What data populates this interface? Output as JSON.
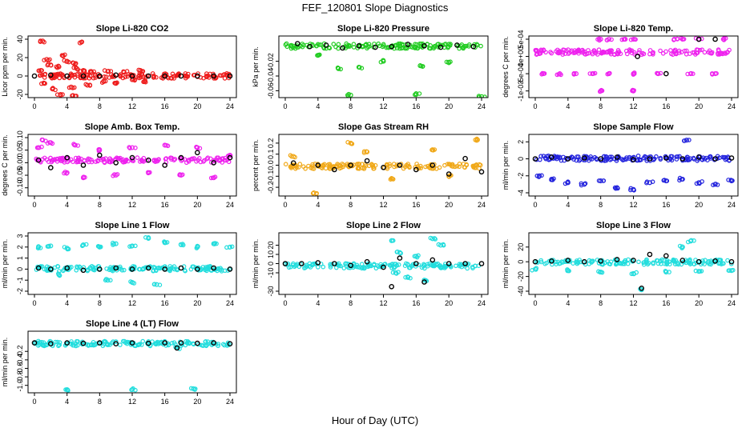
{
  "figure": {
    "title": "FEF_120801  Slope Diagnostics",
    "xlabel": "Hour of Day (UTC)"
  },
  "colors": {
    "red": "#ee1c1c",
    "green": "#22cc22",
    "magenta": "#ee22ee",
    "orange": "#f0a818",
    "blue": "#2222dd",
    "cyan": "#22dddd",
    "black": "#000000"
  },
  "chart_data": [
    {
      "type": "scatter",
      "title": "Slope Li-820 CO2",
      "ylabel": "Licor ppm per min.",
      "color": "red",
      "xlim": [
        0,
        24
      ],
      "ylim": [
        -20,
        40
      ],
      "yticks": [
        "-20",
        "0",
        "20",
        "40"
      ],
      "xticks": [
        "0",
        "4",
        "8",
        "12",
        "16",
        "20",
        "24"
      ],
      "notes": "dense band near 0; outliers up to ~40 and down to ~-20 between hours 0-14",
      "points": [
        [
          1,
          38
        ],
        [
          5.6,
          36
        ],
        [
          1.5,
          18
        ],
        [
          2,
          12
        ],
        [
          3,
          10
        ],
        [
          4,
          16
        ],
        [
          4.8,
          14
        ],
        [
          5.2,
          8
        ],
        [
          6,
          6
        ],
        [
          1.2,
          -8
        ],
        [
          2.2,
          -14
        ],
        [
          3.2,
          -20
        ],
        [
          4.5,
          -12
        ],
        [
          5,
          -22
        ],
        [
          6.5,
          -10
        ],
        [
          8.5,
          -6
        ],
        [
          10,
          -8
        ],
        [
          12,
          -4
        ],
        [
          13,
          6
        ],
        [
          13.5,
          -6
        ],
        [
          3.5,
          22
        ],
        [
          0.8,
          6
        ],
        [
          7,
          4
        ],
        [
          9,
          5
        ],
        [
          11,
          4
        ]
      ],
      "series_black": [
        [
          0,
          0
        ],
        [
          2,
          1
        ],
        [
          4,
          0
        ],
        [
          6,
          0
        ],
        [
          8,
          0
        ],
        [
          10,
          1
        ],
        [
          12,
          0
        ],
        [
          14,
          0
        ],
        [
          16,
          0
        ],
        [
          18,
          0
        ],
        [
          20,
          0
        ],
        [
          22,
          0
        ],
        [
          24,
          0
        ]
      ]
    },
    {
      "type": "scatter",
      "title": "Slope Li-820 Pressure",
      "ylabel": "kPa per min.",
      "color": "green",
      "xlim": [
        0,
        24
      ],
      "ylim": [
        -0.065,
        0.01
      ],
      "yticks": [
        "-0.06",
        "-0.04",
        "-0.02"
      ],
      "xticks": [
        "0",
        "4",
        "8",
        "12",
        "16",
        "20",
        "24"
      ],
      "notes": "upper band ~0 to -0.01, lower band ~-0.015 to -0.025; outliers near -0.065",
      "points": [
        [
          8,
          -0.066
        ],
        [
          16,
          -0.064
        ],
        [
          24,
          -0.068
        ],
        [
          6.5,
          -0.03
        ],
        [
          9,
          -0.028
        ],
        [
          16.5,
          -0.026
        ],
        [
          4,
          -0.012
        ],
        [
          12,
          -0.02
        ],
        [
          20,
          -0.022
        ]
      ],
      "series_black": [
        [
          1.5,
          0.004
        ],
        [
          3,
          0.0
        ],
        [
          5,
          0.002
        ],
        [
          7,
          -0.002
        ],
        [
          9,
          0.001
        ],
        [
          11,
          -0.001
        ],
        [
          13,
          0.0
        ],
        [
          15,
          0.003
        ],
        [
          17,
          0.001
        ],
        [
          19,
          -0.001
        ],
        [
          21,
          0.002
        ],
        [
          23,
          0.0
        ]
      ]
    },
    {
      "type": "scatter",
      "title": "Slope Li-820 Temp.",
      "ylabel": "degrees C per min.",
      "color": "magenta",
      "xlim": [
        0,
        24
      ],
      "ylim": [
        -0.0011,
        0.0005
      ],
      "yticks": [
        "-1e-03",
        "-5e-04",
        "0e+00",
        "5e-04"
      ],
      "xticks": [
        "0",
        "4",
        "8",
        "12",
        "16",
        "20",
        "24"
      ],
      "notes": "most points at 0; discrete levels at 5e-04 and -5e-04, a few at -1e-03",
      "points": [
        [
          8,
          0.0005
        ],
        [
          9,
          0.0005
        ],
        [
          11,
          0.0005
        ],
        [
          12,
          0.0005
        ],
        [
          17,
          0.0005
        ],
        [
          18,
          0.0005
        ],
        [
          20,
          0.0005
        ],
        [
          23,
          0.0005
        ],
        [
          1,
          -0.0005
        ],
        [
          3,
          -0.0005
        ],
        [
          5,
          -0.0005
        ],
        [
          7,
          -0.0005
        ],
        [
          9,
          -0.0005
        ],
        [
          12,
          -0.0005
        ],
        [
          15,
          -0.0005
        ],
        [
          19,
          -0.0005
        ],
        [
          22,
          -0.0005
        ],
        [
          8,
          -0.001
        ],
        [
          12,
          -0.001
        ]
      ],
      "series_black": [
        [
          12.5,
          0.0
        ],
        [
          20,
          0.0005
        ],
        [
          22,
          0.0005
        ],
        [
          16,
          -0.0005
        ]
      ]
    },
    {
      "type": "scatter",
      "title": "Slope Amb. Box Temp.",
      "ylabel": "degrees C per min.",
      "color": "magenta",
      "xlim": [
        0,
        24
      ],
      "ylim": [
        -0.12,
        0.1
      ],
      "yticks": [
        "-0.10",
        "-0.05",
        "0.00",
        "0.05",
        "0.10"
      ],
      "xticks": [
        "0",
        "4",
        "8",
        "12",
        "16",
        "20",
        "24"
      ],
      "notes": "scatter spread roughly -0.08 to 0.08 across all hours",
      "points": [
        [
          0.5,
          0.06
        ],
        [
          1,
          0.09
        ],
        [
          2,
          0.08
        ],
        [
          4,
          -0.04
        ],
        [
          5,
          0.07
        ],
        [
          6,
          -0.06
        ],
        [
          8,
          0.05
        ],
        [
          10,
          -0.05
        ],
        [
          12,
          0.06
        ],
        [
          14,
          -0.04
        ],
        [
          16,
          0.07
        ],
        [
          18,
          -0.05
        ],
        [
          20,
          0.06
        ],
        [
          22,
          -0.06
        ],
        [
          24,
          0.03
        ]
      ],
      "series_black": [
        [
          0.5,
          0.01
        ],
        [
          2,
          -0.02
        ],
        [
          4,
          0.02
        ],
        [
          6,
          -0.01
        ],
        [
          8,
          0.03
        ],
        [
          10,
          0.0
        ],
        [
          12,
          0.02
        ],
        [
          14,
          0.01
        ],
        [
          16,
          -0.01
        ],
        [
          18,
          0.02
        ],
        [
          20,
          0.04
        ],
        [
          22,
          0.0
        ],
        [
          24,
          0.02
        ]
      ]
    },
    {
      "type": "scatter",
      "title": "Slope Gas Stream RH",
      "ylabel": "percent per min.",
      "color": "orange",
      "xlim": [
        0,
        24
      ],
      "ylim": [
        -0.25,
        0.25
      ],
      "yticks": [
        "-0.2",
        "-0.1",
        "0.0",
        "0.1",
        "0.2"
      ],
      "xticks": [
        "0",
        "4",
        "8",
        "12",
        "16",
        "20",
        "24"
      ],
      "notes": "dense band roughly -0.1 to 0.1; a few outliers near +/-0.2",
      "points": [
        [
          3.5,
          -0.25
        ],
        [
          8,
          0.2
        ],
        [
          10,
          0.12
        ],
        [
          13,
          -0.12
        ],
        [
          18,
          0.14
        ],
        [
          23.5,
          0.23
        ],
        [
          1,
          0.08
        ],
        [
          20,
          -0.1
        ]
      ],
      "series_black": [
        [
          1,
          0.02
        ],
        [
          4,
          0.0
        ],
        [
          6,
          -0.04
        ],
        [
          8,
          0.0
        ],
        [
          10,
          0.04
        ],
        [
          12,
          -0.02
        ],
        [
          14,
          0.0
        ],
        [
          16,
          -0.04
        ],
        [
          18,
          0.0
        ],
        [
          20,
          -0.08
        ],
        [
          22,
          0.06
        ],
        [
          24,
          -0.06
        ]
      ]
    },
    {
      "type": "scatter",
      "title": "Slope Sample Flow",
      "ylabel": "ml/min per min.",
      "color": "blue",
      "xlim": [
        0,
        24
      ],
      "ylim": [
        -4,
        2.5
      ],
      "yticks": [
        "-4",
        "-2",
        "0",
        "2"
      ],
      "xticks": [
        "0",
        "4",
        "8",
        "12",
        "16",
        "20",
        "24"
      ],
      "notes": "main band near 0; lower band near -2.5; scattered to -4",
      "points": [
        [
          0.5,
          -2
        ],
        [
          2,
          -2.4
        ],
        [
          4,
          -2.8
        ],
        [
          6,
          -3
        ],
        [
          8,
          -2.6
        ],
        [
          10,
          -3.4
        ],
        [
          12,
          -3.6
        ],
        [
          14,
          -2.8
        ],
        [
          16,
          -2.6
        ],
        [
          18,
          -2.4
        ],
        [
          20,
          -2.8
        ],
        [
          22,
          -3
        ],
        [
          24,
          -2.6
        ],
        [
          18.5,
          2.2
        ]
      ],
      "series_black": [
        [
          0,
          0
        ],
        [
          2,
          0.2
        ],
        [
          4,
          0
        ],
        [
          6,
          0.1
        ],
        [
          8,
          0
        ],
        [
          10,
          0.2
        ],
        [
          12,
          -0.1
        ],
        [
          14,
          0
        ],
        [
          16,
          0.1
        ],
        [
          18,
          0
        ],
        [
          20,
          0.2
        ],
        [
          22,
          0
        ],
        [
          24,
          0.1
        ]
      ]
    },
    {
      "type": "scatter",
      "title": "Slope Line 1 Flow",
      "ylabel": "ml/min per min.",
      "color": "cyan",
      "xlim": [
        0,
        24
      ],
      "ylim": [
        -2,
        3
      ],
      "yticks": [
        "-2",
        "-1",
        "0",
        "1",
        "2",
        "3"
      ],
      "xticks": [
        "0",
        "4",
        "8",
        "12",
        "16",
        "20",
        "24"
      ],
      "notes": "upper band ~1.5-2.5; lower scatter; black series near 0",
      "points": [
        [
          0.5,
          2
        ],
        [
          2,
          2.1
        ],
        [
          4,
          1.9
        ],
        [
          6,
          2.2
        ],
        [
          8,
          2
        ],
        [
          10,
          2.3
        ],
        [
          12,
          2.1
        ],
        [
          14,
          2.8
        ],
        [
          16,
          2.4
        ],
        [
          18,
          2.2
        ],
        [
          20,
          2
        ],
        [
          22,
          2.3
        ],
        [
          24,
          2
        ],
        [
          3,
          -0.5
        ],
        [
          9,
          -1
        ],
        [
          15,
          -1.4
        ],
        [
          12,
          -1.2
        ]
      ],
      "series_black": [
        [
          0.5,
          0.1
        ],
        [
          2,
          0
        ],
        [
          4,
          0.1
        ],
        [
          6,
          -0.1
        ],
        [
          8,
          0
        ],
        [
          10,
          0.1
        ],
        [
          12,
          0
        ],
        [
          14,
          0.1
        ],
        [
          16,
          0
        ],
        [
          18,
          0.1
        ],
        [
          20,
          0
        ],
        [
          22,
          0.1
        ],
        [
          24,
          0
        ]
      ]
    },
    {
      "type": "scatter",
      "title": "Slope Line 2 Flow",
      "ylabel": "ml/min per min.",
      "color": "cyan",
      "xlim": [
        0,
        24
      ],
      "ylim": [
        -30,
        30
      ],
      "yticks": [
        "-30",
        "-10",
        "0",
        "10",
        "20"
      ],
      "xticks": [
        "0",
        "4",
        "8",
        "12",
        "16",
        "20",
        "24"
      ],
      "notes": "dense band near 0; spread between hours 12-20 up to ~25 and down to ~-20",
      "points": [
        [
          13,
          25
        ],
        [
          18,
          27
        ],
        [
          14,
          12
        ],
        [
          16,
          8
        ],
        [
          13.5,
          -10
        ],
        [
          15,
          -15
        ],
        [
          17,
          -18
        ],
        [
          19,
          20
        ]
      ],
      "series_black": [
        [
          0,
          0
        ],
        [
          2,
          0
        ],
        [
          4,
          1
        ],
        [
          6,
          0
        ],
        [
          8,
          -2
        ],
        [
          10,
          2
        ],
        [
          12,
          -4
        ],
        [
          13,
          -25
        ],
        [
          14,
          6
        ],
        [
          16,
          0
        ],
        [
          17,
          -20
        ],
        [
          18,
          4
        ],
        [
          20,
          0
        ],
        [
          22,
          0
        ],
        [
          24,
          0
        ]
      ]
    },
    {
      "type": "scatter",
      "title": "Slope Line 3 Flow",
      "ylabel": "ml/min per min.",
      "color": "cyan",
      "xlim": [
        0,
        24
      ],
      "ylim": [
        -40,
        35
      ],
      "yticks": [
        "-40",
        "-20",
        "0",
        "20"
      ],
      "xticks": [
        "0",
        "4",
        "8",
        "12",
        "16",
        "20",
        "24"
      ],
      "notes": "band near 0; second band ~-12 to -16; outliers to ~-40 and ~30",
      "points": [
        [
          0,
          -10
        ],
        [
          4,
          -12
        ],
        [
          8,
          -14
        ],
        [
          12,
          -16
        ],
        [
          16,
          -14
        ],
        [
          20,
          -13
        ],
        [
          24,
          -12
        ],
        [
          13,
          -38
        ],
        [
          19,
          28
        ],
        [
          18,
          20
        ]
      ],
      "series_black": [
        [
          0,
          0
        ],
        [
          2,
          1
        ],
        [
          4,
          2
        ],
        [
          6,
          0
        ],
        [
          8,
          1
        ],
        [
          10,
          3
        ],
        [
          12,
          2
        ],
        [
          13,
          -36
        ],
        [
          14,
          10
        ],
        [
          16,
          8
        ],
        [
          18,
          2
        ],
        [
          20,
          0
        ],
        [
          22,
          1
        ],
        [
          24,
          0
        ]
      ]
    },
    {
      "type": "scatter",
      "title": "Slope Line 4 (LT) Flow",
      "ylabel": "ml/min per min.",
      "color": "cyan",
      "xlim": [
        0,
        24
      ],
      "ylim": [
        -1.1,
        0.2
      ],
      "yticks": [
        "-1.0",
        "-0.8",
        "-0.6",
        "-0.4",
        "-0.2"
      ],
      "xticks": [
        "0",
        "4",
        "8",
        "12",
        "16",
        "20",
        "24"
      ],
      "notes": "dense band near 0; a few points near -1.1",
      "points": [
        [
          4,
          -1.1
        ],
        [
          12,
          -1.1
        ],
        [
          19.5,
          -1.08
        ],
        [
          17.5,
          -0.12
        ]
      ],
      "series_black": [
        [
          0,
          0
        ],
        [
          2,
          -0.02
        ],
        [
          4,
          0
        ],
        [
          6,
          -0.01
        ],
        [
          8,
          0
        ],
        [
          10,
          -0.02
        ],
        [
          12,
          0
        ],
        [
          14,
          -0.01
        ],
        [
          16,
          0
        ],
        [
          17.5,
          -0.12
        ],
        [
          18,
          0
        ],
        [
          20,
          -0.01
        ],
        [
          22,
          0
        ],
        [
          24,
          -0.02
        ]
      ]
    }
  ]
}
